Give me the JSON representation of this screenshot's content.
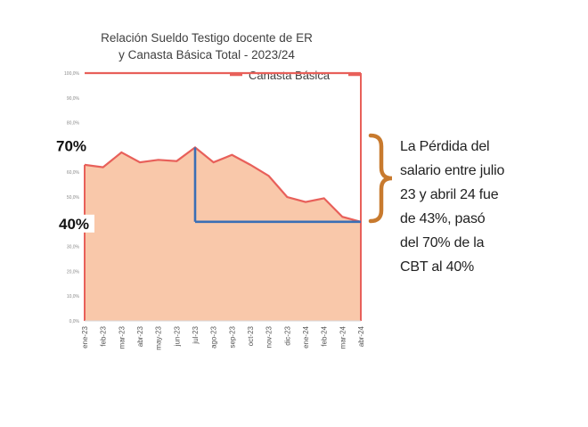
{
  "chart_data": {
    "type": "area",
    "title_lines": [
      "Relación Sueldo Testigo docente de ER",
      "y Canasta Básica Total - 2023/24"
    ],
    "legend": {
      "label": "Canasta Básica",
      "color": "#e8605a",
      "placement": "top-right"
    },
    "categories": [
      "ene-23",
      "feb-23",
      "mar-23",
      "abr-23",
      "may-23",
      "jun-23",
      "jul-23",
      "ago-23",
      "sep-23",
      "oct-23",
      "nov-23",
      "dic-23",
      "ene-24",
      "feb-24",
      "mar-24",
      "abr-24"
    ],
    "series": [
      {
        "name": "Canasta Básica",
        "values": [
          100,
          100,
          100,
          100,
          100,
          100,
          100,
          100,
          100,
          100,
          100,
          100,
          100,
          100,
          100,
          100
        ],
        "color": "#e8605a"
      },
      {
        "values": [
          63,
          62,
          68,
          64,
          65,
          64.5,
          70,
          64,
          67,
          63,
          58.5,
          50,
          48,
          49.5,
          42,
          40
        ],
        "fill": "#f9c8aa",
        "stroke": "#e8605a"
      }
    ],
    "y_ticks": [
      "0,0%",
      "10,0%",
      "20,0%",
      "30,0%",
      "40,0%",
      "50,0%",
      "60,0%",
      "70,0%",
      "80,0%",
      "90,0%",
      "100,0%"
    ],
    "ylim": [
      0,
      100
    ],
    "markers": {
      "high_label": "70%",
      "high_value": 70,
      "low_label": "40%",
      "low_value": 40,
      "from_category": "jul-23",
      "to_category": "abr-24",
      "color": "#3a6fb5"
    },
    "grid": false
  },
  "note": {
    "lines": [
      "La Pérdida del",
      "salario entre julio",
      "23 y abril 24 fue",
      "de 43%, pasó",
      "del 70% de la",
      "CBT al 40%"
    ],
    "brace_color": "#c87a2e"
  }
}
